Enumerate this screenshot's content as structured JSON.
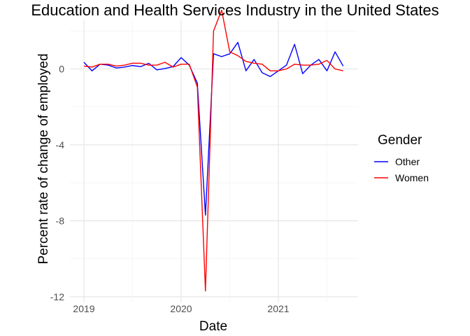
{
  "chart_data": {
    "type": "line",
    "title": "Education and Health Services Industry in the United States",
    "xlabel": "Date",
    "ylabel": "Percent rate of change of employed",
    "x_ticks": [
      "2019",
      "2020",
      "2021"
    ],
    "y_ticks": [
      "0",
      "-4",
      "-8",
      "-12"
    ],
    "ylim": [
      -12.3,
      2.6
    ],
    "grid": true,
    "legend": {
      "title": "Gender",
      "position": "right",
      "entries": [
        "Other",
        "Women"
      ]
    },
    "x": [
      "2019-01",
      "2019-02",
      "2019-03",
      "2019-04",
      "2019-05",
      "2019-06",
      "2019-07",
      "2019-08",
      "2019-09",
      "2019-10",
      "2019-11",
      "2019-12",
      "2020-01",
      "2020-02",
      "2020-03",
      "2020-04",
      "2020-05",
      "2020-06",
      "2020-07",
      "2020-08",
      "2020-09",
      "2020-10",
      "2020-11",
      "2020-12",
      "2021-01",
      "2021-02",
      "2021-03",
      "2021-04",
      "2021-05",
      "2021-06",
      "2021-07",
      "2021-08",
      "2021-09"
    ],
    "series": [
      {
        "name": "Other",
        "color": "#0000ff",
        "values": [
          0.35,
          -0.1,
          0.25,
          0.2,
          0.05,
          0.1,
          0.18,
          0.12,
          0.3,
          -0.05,
          0.02,
          0.12,
          0.6,
          0.2,
          -0.75,
          -7.7,
          0.8,
          0.65,
          0.8,
          1.4,
          -0.1,
          0.5,
          -0.2,
          -0.4,
          -0.1,
          0.2,
          1.3,
          -0.25,
          0.2,
          0.5,
          -0.1,
          0.9,
          0.15
        ]
      },
      {
        "name": "Women",
        "color": "#ff0000",
        "values": [
          0.15,
          0.1,
          0.25,
          0.25,
          0.15,
          0.2,
          0.3,
          0.3,
          0.2,
          0.2,
          0.35,
          0.1,
          0.25,
          0.25,
          -0.95,
          -11.7,
          2.0,
          3.1,
          0.9,
          0.7,
          0.4,
          0.3,
          0.25,
          -0.1,
          -0.1,
          0.0,
          0.25,
          0.2,
          0.2,
          0.25,
          0.45,
          0.0,
          -0.1
        ]
      }
    ]
  }
}
